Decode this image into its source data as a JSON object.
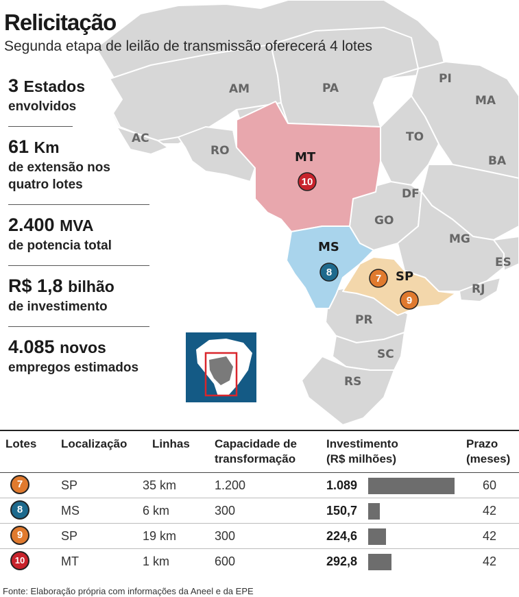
{
  "header": {
    "title": "Relicitação",
    "subtitle": "Segunda etapa de leilão de transmissão oferecerá 4 lotes"
  },
  "stats": [
    {
      "big": "3",
      "unit": "Estados",
      "text": [
        "envolvidos"
      ]
    },
    {
      "big": "61",
      "unit": "Km",
      "text": [
        "de extensão nos",
        "quatro lotes"
      ]
    },
    {
      "big": "2.400",
      "unit": "MVA",
      "text": [
        "de potencia total"
      ]
    },
    {
      "big": "R$ 1,8",
      "unit": "bilhão",
      "text": [
        "de investimento"
      ]
    },
    {
      "big": "4.085",
      "unit": "novos",
      "text": [
        "empregos estimados"
      ]
    }
  ],
  "map": {
    "states": [
      "AM",
      "PA",
      "AC",
      "RO",
      "TO",
      "PI",
      "MA",
      "BA",
      "DF",
      "GO",
      "MG",
      "ES",
      "RJ",
      "PR",
      "SC",
      "RS"
    ],
    "highlighted": [
      "MT",
      "MS",
      "SP"
    ],
    "colors": {
      "base": "#d7d7d7",
      "mt": "#e8a7ad",
      "ms": "#a9d4ec",
      "sp": "#f3d7ab",
      "ocean": "#ffffff",
      "inset_bg": "#145a85",
      "inset_box": "#d9262c"
    }
  },
  "table": {
    "headers": {
      "lotes": "Lotes",
      "localizacao": "Localização",
      "linhas": "Linhas",
      "capacidade": [
        "Capacidade de",
        "transformação"
      ],
      "investimento": [
        "Investimento",
        "(R$ milhões)"
      ],
      "prazo": [
        "Prazo",
        "(meses)"
      ]
    },
    "rows": [
      {
        "lote": "7",
        "color": "#e07a2e",
        "loc": "SP",
        "linhas": "35 km",
        "cap": "1.200",
        "inv_label": "1.089",
        "inv": 1089,
        "prazo": "60"
      },
      {
        "lote": "8",
        "color": "#1e6a8d",
        "loc": "MS",
        "linhas": "6 km",
        "cap": "300",
        "inv_label": "150,7",
        "inv": 150.7,
        "prazo": "42"
      },
      {
        "lote": "9",
        "color": "#e07a2e",
        "loc": "SP",
        "linhas": "19 km",
        "cap": "300",
        "inv_label": "224,6",
        "inv": 224.6,
        "prazo": "42"
      },
      {
        "lote": "10",
        "color": "#c8232c",
        "loc": "MT",
        "linhas": "1 km",
        "cap": "600",
        "inv_label": "292,8",
        "inv": 292.8,
        "prazo": "42"
      }
    ]
  },
  "chart_data": {
    "type": "table",
    "columns": [
      "Lotes",
      "Localização",
      "Linhas",
      "Capacidade de transformação",
      "Investimento (R$ milhões)",
      "Prazo (meses)"
    ],
    "rows": [
      [
        "7",
        "SP",
        "35 km",
        "1.200",
        1089,
        60
      ],
      [
        "8",
        "MS",
        "6 km",
        "300",
        150.7,
        42
      ],
      [
        "9",
        "SP",
        "19 km",
        "300",
        224.6,
        42
      ],
      [
        "10",
        "MT",
        "1 km",
        "600",
        292.8,
        42
      ]
    ],
    "bar_column": "Investimento (R$ milhões)",
    "bar_max": 1089
  },
  "footer": {
    "source": "Fonte: Elaboração própria com informações da Aneel e da EPE"
  }
}
